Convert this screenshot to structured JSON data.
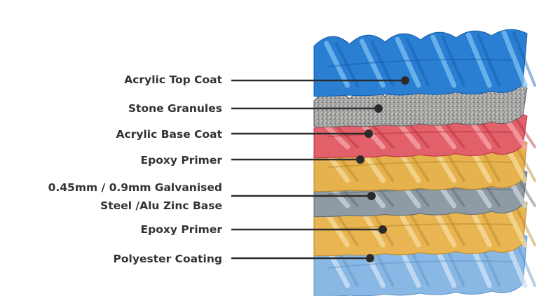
{
  "layers": [
    {
      "label": "Acrylic Top Coat",
      "color": "#2a7fd3",
      "highlight": "#7cc0f0",
      "shadow": "#145ea8"
    },
    {
      "label": "Stone Granules",
      "color": "#9a9a98",
      "highlight": "#d7d7d4",
      "shadow": "#5c5c5a"
    },
    {
      "label": "Acrylic Base Coat",
      "color": "#e2606a",
      "highlight": "#f4a7ac",
      "shadow": "#b8303c"
    },
    {
      "label": "Epoxy Primer",
      "color": "#e6b24e",
      "highlight": "#f6dc9c",
      "shadow": "#b98425"
    },
    {
      "label": "0.45mm / 0.9mm Galvanised Steel /Alu Zinc Base",
      "line1": "0.45mm / 0.9mm Galvanised",
      "line2": "Steel /Alu Zinc Base",
      "color": "#8e9aa4",
      "highlight": "#cdd6de",
      "shadow": "#5d6873"
    },
    {
      "label": "Epoxy Primer",
      "color": "#e8b552",
      "highlight": "#f7dda0",
      "shadow": "#bb8727"
    },
    {
      "label": "Polyester Coating",
      "color": "#8ab8e4",
      "highlight": "#cfe4f6",
      "shadow": "#5e93c8"
    }
  ],
  "leader_color": "#2b2b2b"
}
